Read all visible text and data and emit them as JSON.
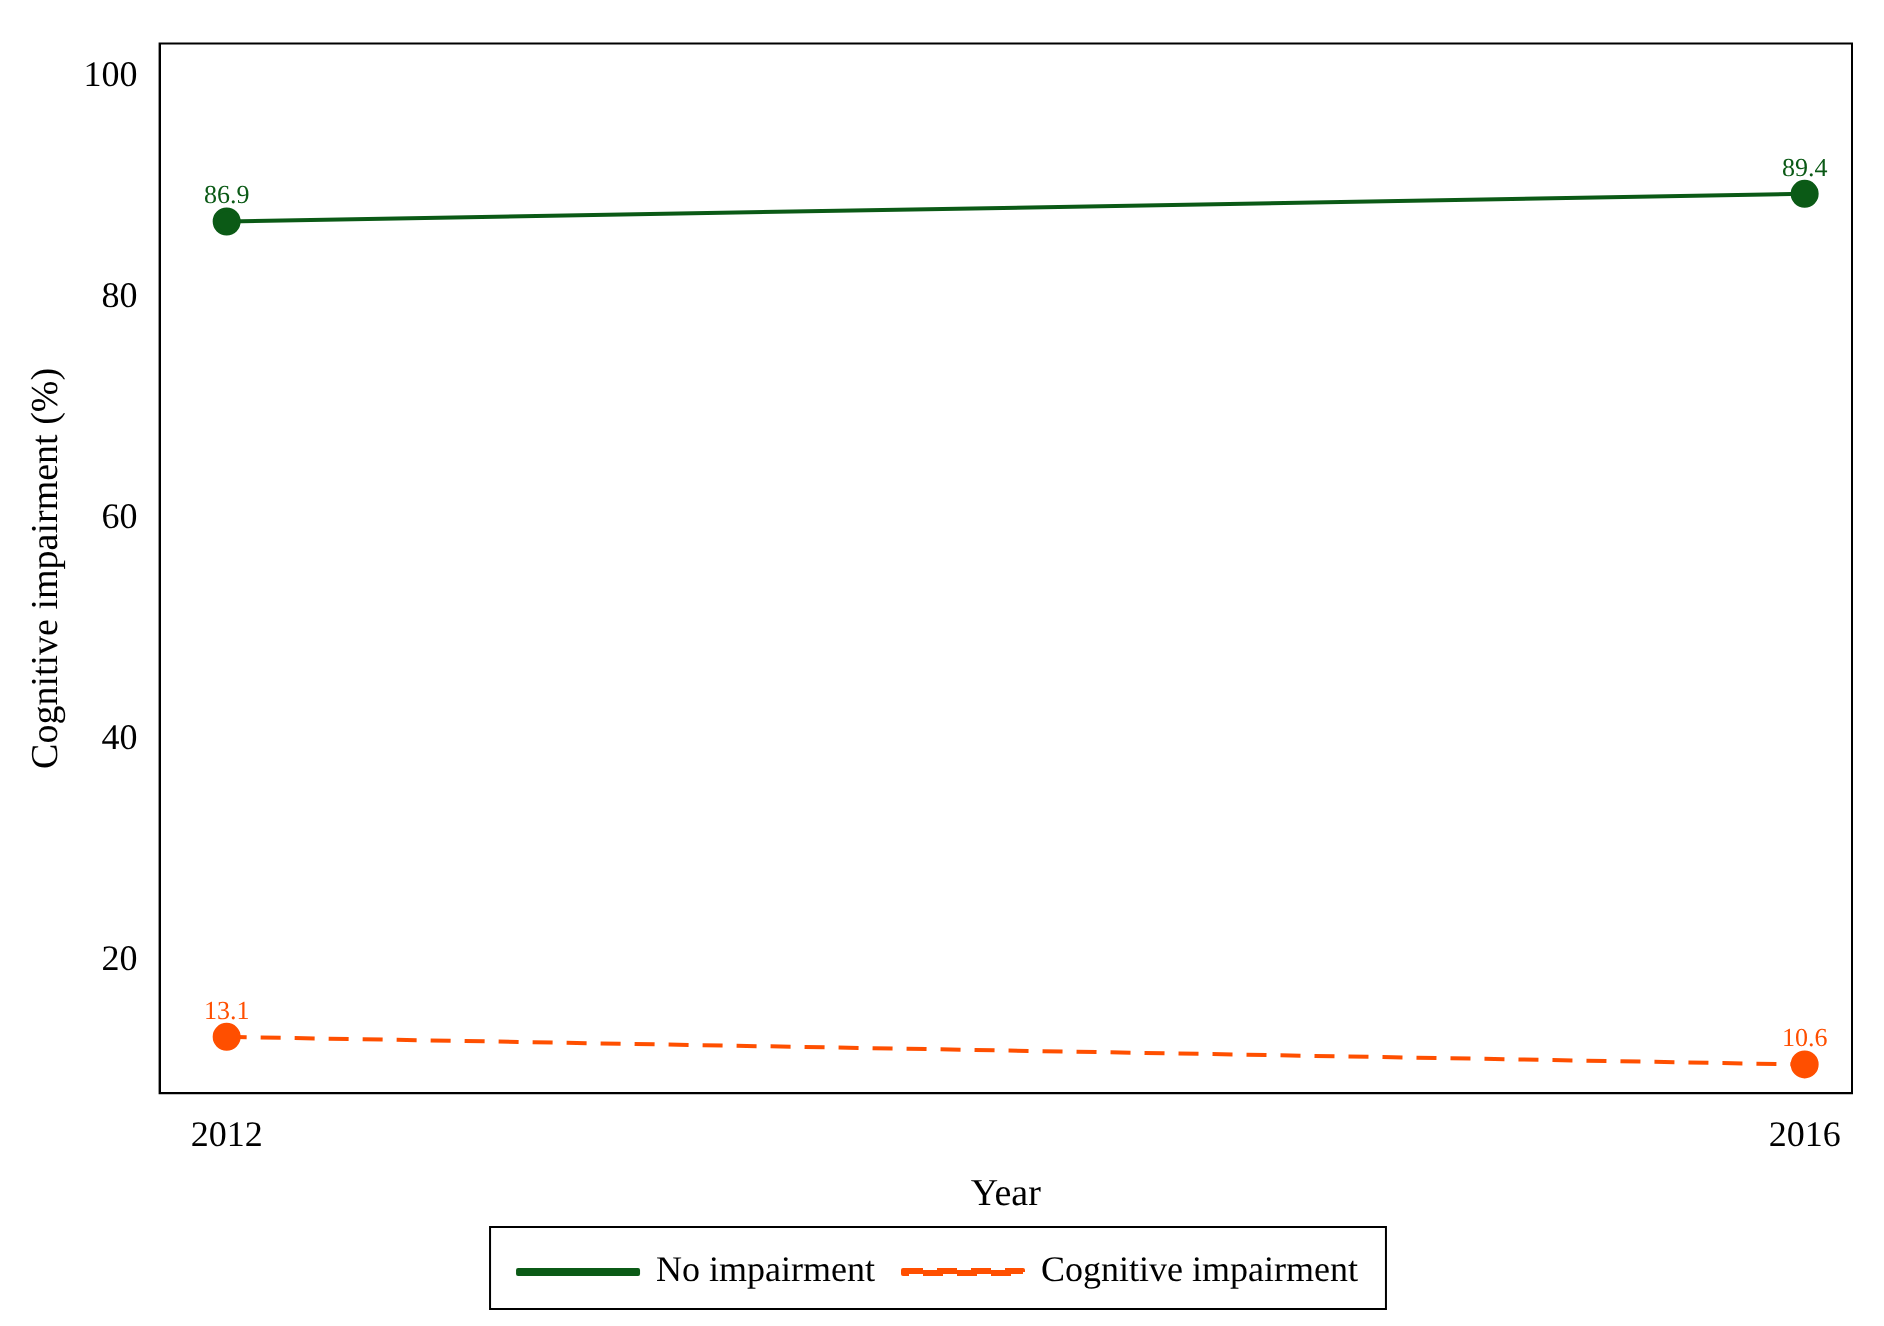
{
  "chart_data": {
    "type": "line",
    "xlabel": "Year",
    "ylabel": "Cognitive impairment (%)",
    "x": [
      2012,
      2016
    ],
    "series": [
      {
        "name": "No impairment",
        "color": "#0b5a16",
        "values": [
          86.9,
          89.4
        ],
        "line_style": "solid"
      },
      {
        "name": "Cognitive impairment",
        "color": "#ff4f00",
        "values": [
          13.1,
          10.6
        ],
        "line_style": "dashed"
      }
    ],
    "xlim": [
      2011.83,
      2016.12
    ],
    "xticks": [
      2012,
      2016
    ],
    "ylim": [
      8,
      103
    ],
    "yticks": [
      20,
      40,
      60,
      80,
      100
    ],
    "grid": false,
    "legend": "bottom",
    "marker": "circle",
    "data_labels": true
  }
}
